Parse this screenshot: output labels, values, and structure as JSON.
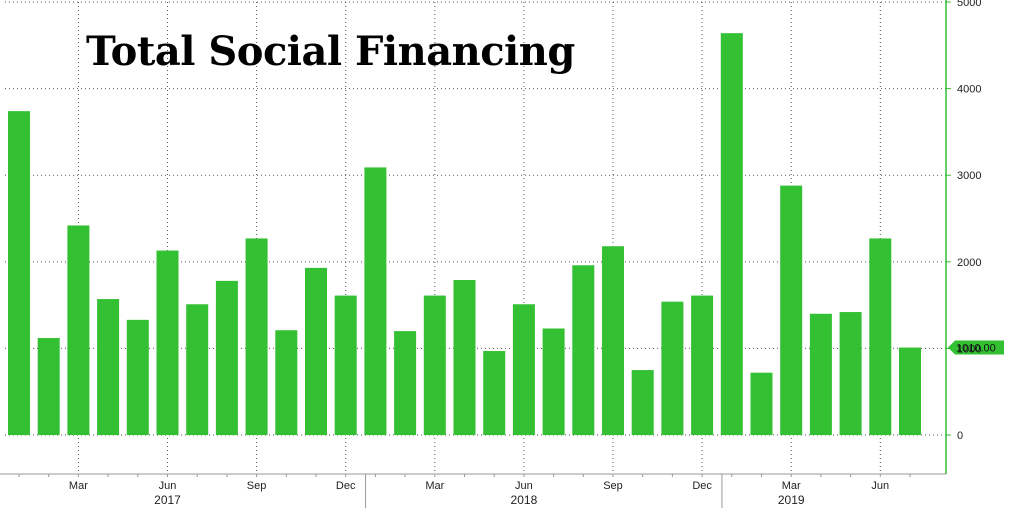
{
  "chart_data": {
    "type": "bar",
    "title": "Total Social Financing",
    "x": [
      "2017-01",
      "2017-02",
      "2017-03",
      "2017-04",
      "2017-05",
      "2017-06",
      "2017-07",
      "2017-08",
      "2017-09",
      "2017-10",
      "2017-11",
      "2017-12",
      "2018-01",
      "2018-02",
      "2018-03",
      "2018-04",
      "2018-05",
      "2018-06",
      "2018-07",
      "2018-08",
      "2018-09",
      "2018-10",
      "2018-11",
      "2018-12",
      "2019-01",
      "2019-02",
      "2019-03",
      "2019-04",
      "2019-05",
      "2019-06",
      "2019-07"
    ],
    "values": [
      3740,
      1120,
      2420,
      1570,
      1330,
      2130,
      1510,
      1780,
      2270,
      1210,
      1930,
      1610,
      3090,
      1200,
      1610,
      1790,
      970,
      1510,
      1230,
      1960,
      2180,
      750,
      1540,
      1610,
      4640,
      720,
      2880,
      1400,
      1420,
      2270,
      1010
    ],
    "x_tick_labels": [
      {
        "month": "2017-03",
        "label": "Mar"
      },
      {
        "month": "2017-06",
        "label": "Jun"
      },
      {
        "month": "2017-09",
        "label": "Sep"
      },
      {
        "month": "2017-12",
        "label": "Dec"
      },
      {
        "month": "2018-03",
        "label": "Mar"
      },
      {
        "month": "2018-06",
        "label": "Jun"
      },
      {
        "month": "2018-09",
        "label": "Sep"
      },
      {
        "month": "2018-12",
        "label": "Dec"
      },
      {
        "month": "2019-03",
        "label": "Mar"
      },
      {
        "month": "2019-06",
        "label": "Jun"
      }
    ],
    "year_labels": [
      {
        "month": "2017-06",
        "label": "2017"
      },
      {
        "month": "2018-06",
        "label": "2018"
      },
      {
        "month": "2019-03",
        "label": "2019"
      }
    ],
    "y_ticks": [
      0,
      1000,
      2000,
      3000,
      4000,
      5000
    ],
    "y_tick_labels": [
      "0",
      "1000",
      "2000",
      "3000",
      "4000",
      "5000"
    ],
    "ylim": [
      -450,
      5000
    ],
    "y_axis_position": "right",
    "last_value_label": "1010.00",
    "grid": true,
    "bar_color": "#33c033",
    "axis_color": "#33c033"
  }
}
